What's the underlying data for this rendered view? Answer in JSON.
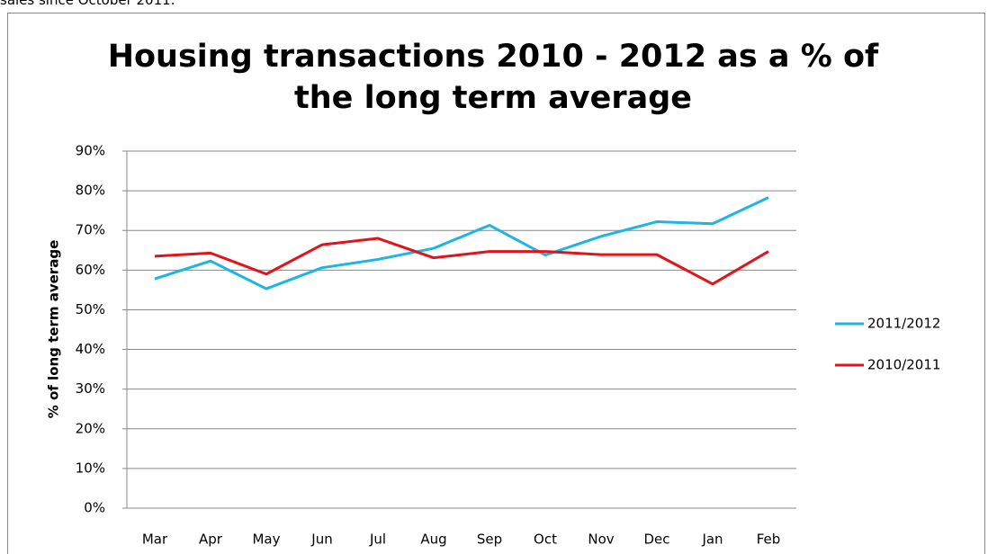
{
  "page_text": "sales since October 2011.",
  "chart_data": {
    "type": "line",
    "title": "Housing transactions 2010 - 2012 as a % of the long term average",
    "y_label": "% of long term average",
    "categories": [
      "Mar",
      "Apr",
      "May",
      "Jun",
      "Jul",
      "Aug",
      "Sep",
      "Oct",
      "Nov",
      "Dec",
      "Jan",
      "Feb"
    ],
    "series": [
      {
        "name": "2011/2012",
        "color": "#1fb4e8",
        "values": [
          57.8,
          62.3,
          55.3,
          60.6,
          62.7,
          65.5,
          71.3,
          63.8,
          68.5,
          72.2,
          71.7,
          78.3
        ]
      },
      {
        "name": "2010/2011",
        "color": "#e0141b",
        "values": [
          63.5,
          64.3,
          59.0,
          66.4,
          68.0,
          63.1,
          64.7,
          64.7,
          63.9,
          63.9,
          56.5,
          64.7
        ]
      }
    ],
    "ylim": [
      0,
      90
    ],
    "yticks": [
      {
        "value": 0,
        "label": "0%"
      },
      {
        "value": 10,
        "label": "10%"
      },
      {
        "value": 20,
        "label": "20%"
      },
      {
        "value": 30,
        "label": "30%"
      },
      {
        "value": 40,
        "label": "40%"
      },
      {
        "value": 50,
        "label": "50%"
      },
      {
        "value": 60,
        "label": "60%"
      },
      {
        "value": 70,
        "label": "70%"
      },
      {
        "value": 80,
        "label": "80%"
      },
      {
        "value": 90,
        "label": "90%"
      }
    ],
    "grid": true,
    "legend": "right"
  }
}
